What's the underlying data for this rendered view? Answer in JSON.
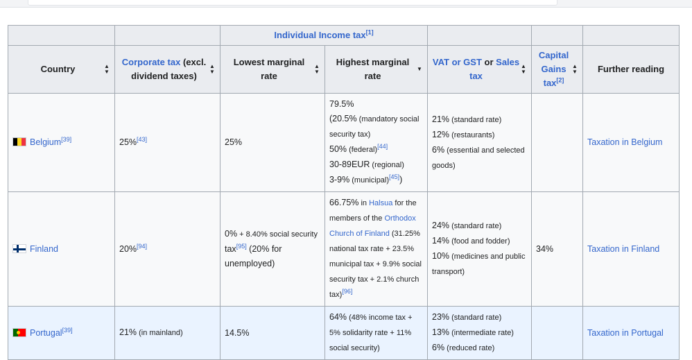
{
  "headers": {
    "group": "Individual Income tax",
    "group_ref": "[1]",
    "country": "Country",
    "corporate_link": "Corporate tax",
    "corporate_rest": " (excl. dividend taxes)",
    "lowest": "Lowest marginal rate",
    "highest": "Highest marginal rate",
    "vat_link": "VAT or GST",
    "vat_mid": " or ",
    "sales_link": "Sales tax",
    "cg_link": "Capital Gains tax",
    "cg_ref": "[2]",
    "further": "Further reading"
  },
  "rows": [
    {
      "country": "Belgium",
      "country_ref": "[39]",
      "corp": "25%",
      "corp_ref": "[43]",
      "lowest": "25%",
      "h1": "79.5%",
      "h2a": "(20.5%",
      "h2b": " (mandatory social security tax)",
      "h3a": "50%",
      "h3b": " (federal)",
      "h3ref": "[44]",
      "h4a": "30-89EUR",
      "h4b": " (regional)",
      "h5a": "3-9%",
      "h5b": " (municipal)",
      "h5ref": "[45]",
      "h5c": ")",
      "v1a": "21%",
      "v1b": " (standard rate)",
      "v2a": "12%",
      "v2b": " (restaurants)",
      "v3a": "6%",
      "v3b": " (essential and selected goods)",
      "cg": "",
      "reading": "Taxation in Belgium"
    },
    {
      "country": "Finland",
      "corp": "20%",
      "corp_ref": "[94]",
      "low_a": "0%",
      "low_b": " + 8.40% social security",
      "low_c": " tax",
      "low_ref": "[95]",
      "low_d": " (20% for unemployed)",
      "h_a": "66.75%",
      "h_b": " in ",
      "h_link1": "Halsua",
      "h_c": " for the members of the ",
      "h_link2": "Orthodox Church of Finland",
      "h_d": " (31.25% national tax rate + 23.5% municipal tax + 9.9% social security tax + 2.1% church tax)",
      "h_ref": "[96]",
      "v1a": "24%",
      "v1b": " (standard rate)",
      "v2a": "14%",
      "v2b": " (food and fodder)",
      "v3a": "10%",
      "v3b": " (medicines and public transport)",
      "cg": "34%",
      "reading": "Taxation in Finland"
    },
    {
      "country": "Portugal",
      "country_ref": "[39]",
      "corp_a": "21%",
      "corp_b": " (in mainland)",
      "lowest": "14.5%",
      "h_a": "64%",
      "h_b": " (48% income tax + 5% solidarity rate + 11% social security)",
      "v1a": "23%",
      "v1b": " (standard rate)",
      "v2a": "13%",
      "v2b": " (intermediate rate)",
      "v3a": "6%",
      "v3b": " (reduced rate)",
      "cg": "",
      "reading": "Taxation in Portugal"
    }
  ]
}
